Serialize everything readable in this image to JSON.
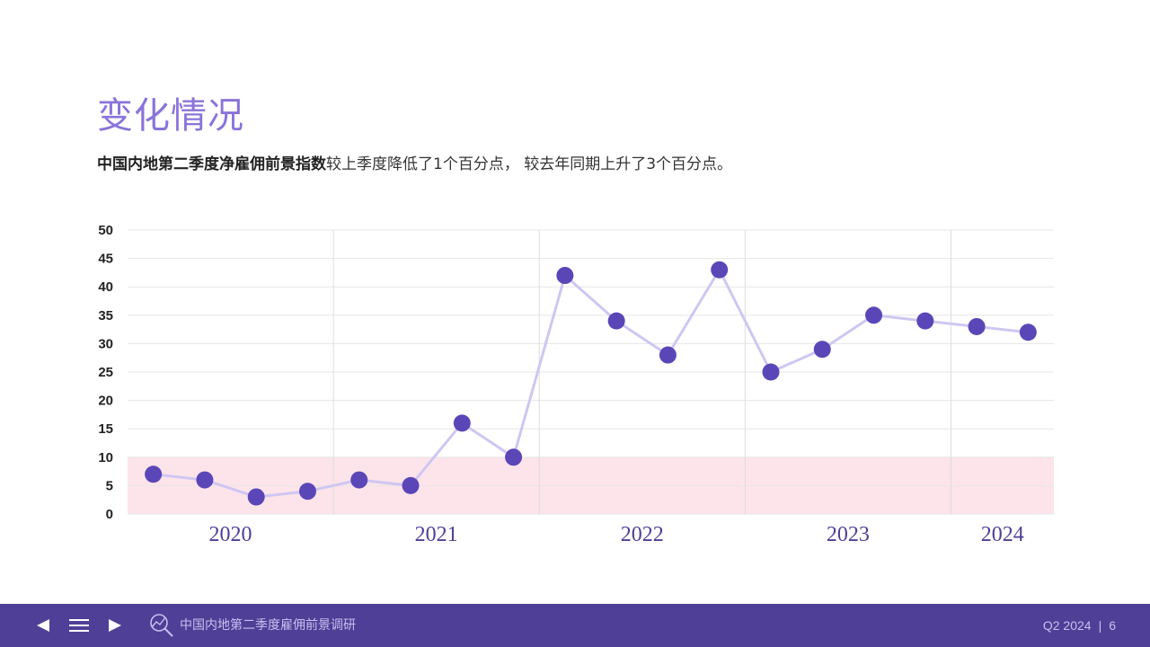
{
  "slide": {
    "title": "变化情况",
    "subtitle_bold": "中国内地第二季度净雇佣前景指数",
    "subtitle_rest": "较上季度降低了1个百分点， 较去年同期上升了3个百分点。"
  },
  "footer": {
    "prev_icon": "triangle-left-icon",
    "menu_icon": "hamburger-menu-icon",
    "next_icon": "triangle-right-icon",
    "logo_icon": "magnifier-chart-icon",
    "brand": "中国内地第二季度雇佣前景调研",
    "period": "Q2 2024",
    "separator": "|",
    "page": "6"
  },
  "colors": {
    "accent": "#8a73d9",
    "footer_bg": "#4f3f96",
    "point": "#5b46b8",
    "line": "#cfc6f2",
    "band": "#fde4ea"
  },
  "chart_data": {
    "type": "line",
    "title": "",
    "xlabel": "",
    "ylabel": "",
    "ylim": [
      0,
      50
    ],
    "yticks": [
      0,
      5,
      10,
      15,
      20,
      25,
      30,
      35,
      40,
      45,
      50
    ],
    "grid": true,
    "shaded_band": [
      0,
      10
    ],
    "year_groups": [
      {
        "label": "2020",
        "start": 0,
        "count": 4
      },
      {
        "label": "2021",
        "start": 4,
        "count": 4
      },
      {
        "label": "2022",
        "start": 8,
        "count": 4
      },
      {
        "label": "2023",
        "start": 12,
        "count": 4
      },
      {
        "label": "2024",
        "start": 16,
        "count": 2
      }
    ],
    "series": [
      {
        "values": [
          7,
          6,
          3,
          4,
          6,
          5,
          16,
          10,
          42,
          34,
          28,
          43,
          25,
          29,
          35,
          34,
          33,
          32
        ]
      }
    ]
  }
}
